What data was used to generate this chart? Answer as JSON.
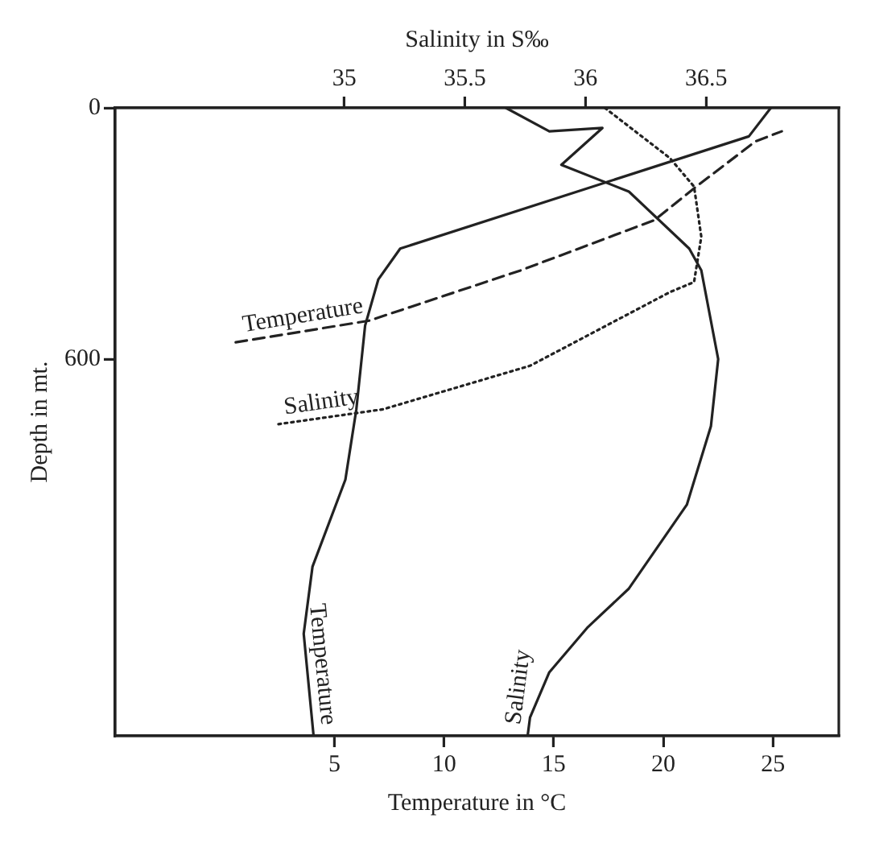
{
  "chart_data": {
    "type": "line",
    "xlabel": "Temperature in °C",
    "x2label": "Salinity in S‰",
    "ylabel": "Depth in mt.",
    "xlim": [
      -5,
      28
    ],
    "xticks": [
      5,
      10,
      15,
      20,
      25
    ],
    "x2lim": [
      34.05,
      37.05
    ],
    "x2ticks": [
      35,
      35.5,
      36,
      36.5
    ],
    "ylim": [
      1500,
      0
    ],
    "yticks": [
      0,
      600
    ],
    "grid": false,
    "legend": false,
    "marker": "none",
    "series": [
      {
        "name": "Temperature",
        "color": "#222222",
        "line_style": "solid",
        "x": [
          24.9,
          23.9,
          8.0,
          7.0,
          6.4,
          6.0,
          5.5,
          4.0,
          3.6,
          4.05
        ],
        "values": [
          0,
          68,
          336,
          410,
          520,
          720,
          888,
          1096,
          1256,
          1500
        ]
      },
      {
        "name": "Salinity",
        "color": "#222222",
        "line_style": "solid",
        "axis": "x2",
        "x": [
          35.67,
          35.85,
          36.07,
          35.9,
          36.18,
          36.43,
          36.48,
          36.55,
          36.52,
          36.42,
          36.18,
          36.01,
          35.85,
          35.77,
          35.76
        ],
        "values": [
          0,
          56,
          48,
          136,
          200,
          336,
          388,
          600,
          760,
          948,
          1148,
          1240,
          1348,
          1456,
          1500
        ]
      },
      {
        "name": "Temperature",
        "color": "#222222",
        "line_style": "dashed",
        "x": [
          0.5,
          6.6,
          13.5,
          19.6,
          21.5,
          24.2,
          25.4
        ],
        "values": [
          560,
          508,
          388,
          268,
          188,
          80,
          56
        ]
      },
      {
        "name": "Salinity",
        "color": "#222222",
        "line_style": "dotted",
        "axis": "x2",
        "x": [
          36.08,
          36.35,
          36.45,
          36.48,
          36.45,
          36.35,
          35.77,
          35.16,
          34.72
        ],
        "values": [
          0,
          120,
          188,
          308,
          416,
          440,
          616,
          720,
          756
        ]
      }
    ]
  }
}
